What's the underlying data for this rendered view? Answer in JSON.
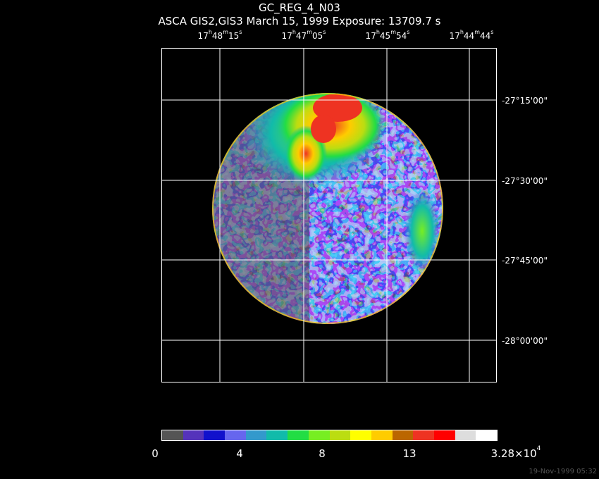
{
  "title": "GC_REG_4_N03",
  "subtitle": "ASCA GIS2,GIS3 March 15, 1999 Exposure: 13709.7 s",
  "ra_labels": [
    {
      "h": "17",
      "m": "48",
      "s": "15"
    },
    {
      "h": "17",
      "m": "47",
      "s": "05"
    },
    {
      "h": "17",
      "m": "45",
      "s": "54"
    },
    {
      "h": "17",
      "m": "44",
      "s": "44"
    }
  ],
  "dec_labels": [
    "-27°15'00\"",
    "-27°30'00\"",
    "-27°45'00\"",
    "-28°00'00\""
  ],
  "colorbar": {
    "labels": [
      "0",
      "4",
      "8",
      "13"
    ],
    "max_mantissa": "3.28×10",
    "max_exponent": "4",
    "colors": [
      "#555555",
      "#5533bb",
      "#1111cc",
      "#6666ee",
      "#3399cc",
      "#11bbaa",
      "#22dd44",
      "#77ee22",
      "#bbdd11",
      "#ffff00",
      "#ffcc00",
      "#bb6600",
      "#ee3322",
      "#ff0000",
      "#dddddd",
      "#ffffff"
    ]
  },
  "timestamp": "19-Nov-1999 05:32"
}
